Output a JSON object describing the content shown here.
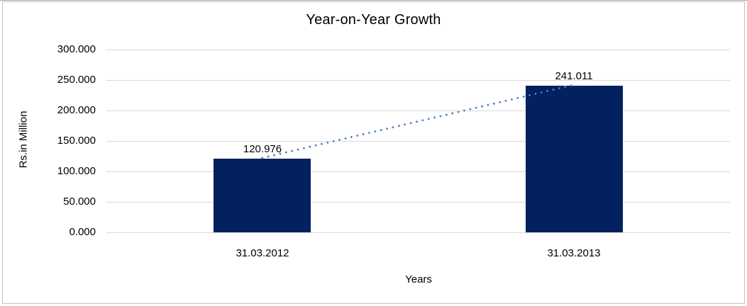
{
  "chart": {
    "title": "Year-on-Year Growth",
    "y_axis_title": "Rs.in Million",
    "x_axis_title": "Years"
  },
  "chart_data": {
    "type": "bar",
    "title": "Year-on-Year Growth",
    "xlabel": "Years",
    "ylabel": "Rs.in Million",
    "categories": [
      "31.03.2012",
      "31.03.2013"
    ],
    "values": [
      120.976,
      241.011
    ],
    "data_labels": [
      "120.976",
      "241.011"
    ],
    "ytick_labels": [
      "0.000",
      "50.000",
      "100.000",
      "150.000",
      "200.000",
      "250.000",
      "300.000"
    ],
    "ylim": [
      0,
      300
    ],
    "ytick_step": 50,
    "grid": true,
    "legend": "none",
    "trendline": {
      "style": "dotted",
      "from_value": 120.976,
      "to_value": 241.011
    },
    "colors": {
      "bar": "#02215E",
      "trendline": "#4F81BD",
      "gridline": "#D9D9D9",
      "frame_border": "#C4C4C4",
      "text": "#000000"
    }
  }
}
